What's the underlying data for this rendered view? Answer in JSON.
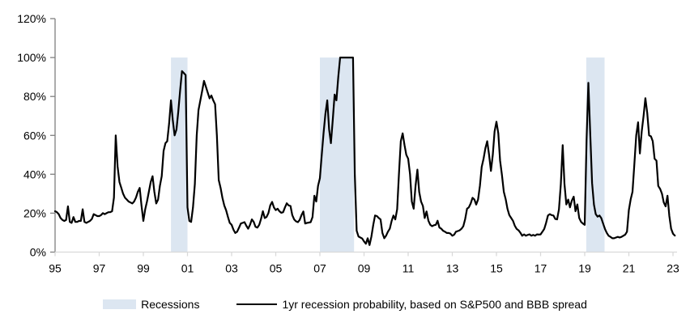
{
  "chart_data": {
    "type": "line",
    "title": "",
    "xlabel": "",
    "ylabel": "",
    "ylim": [
      0,
      120
    ],
    "y_tick_values": [
      0,
      20,
      40,
      60,
      80,
      100,
      120
    ],
    "y_ticks": [
      "0%",
      "20%",
      "40%",
      "60%",
      "80%",
      "100%",
      "120%"
    ],
    "x_tick_years": [
      1995,
      1997,
      1999,
      2001,
      2003,
      2005,
      2007,
      2009,
      2011,
      2013,
      2015,
      2017,
      2019,
      2021,
      2023
    ],
    "x_tick_labels": [
      "95",
      "97",
      "99",
      "01",
      "03",
      "05",
      "07",
      "09",
      "11",
      "13",
      "15",
      "17",
      "19",
      "21",
      "23"
    ],
    "x_start_year": 1995,
    "points_per_year": 12,
    "band_color": "#dce6f1",
    "line_color": "#000000",
    "axis_colors": {
      "y_axis": "#808080",
      "x_axis": "#d9d9d9",
      "tick_label": "#000000"
    },
    "recession_bands": [
      {
        "start": 2000.25,
        "end": 2001.0
      },
      {
        "start": 2007.0,
        "end": 2008.55
      },
      {
        "start": 2019.07,
        "end": 2019.9
      }
    ],
    "series": [
      {
        "name": "1yr recession probability, based on S&P500 and BBB spread",
        "color": "#000000",
        "values": [
          21,
          20.5,
          19.5,
          17.5,
          16.5,
          16,
          16.5,
          23.5,
          15.5,
          15,
          18,
          15.5,
          15.5,
          16,
          16,
          22,
          15.5,
          15,
          15.5,
          16,
          17,
          19.5,
          19,
          18.5,
          18.5,
          19,
          20,
          19.5,
          20,
          20.5,
          20.5,
          21,
          28,
          60,
          44,
          36,
          33,
          30,
          28,
          27,
          26,
          25.5,
          25,
          26,
          28,
          31,
          33,
          24,
          16,
          22,
          26,
          31,
          36,
          39,
          31,
          25,
          27,
          34,
          39,
          52,
          56,
          57,
          66,
          78,
          68,
          60,
          63,
          72,
          83,
          93,
          92,
          91,
          23,
          16,
          15.5,
          23,
          35,
          60,
          73,
          78,
          83,
          88,
          85,
          82,
          79,
          80.5,
          78,
          76,
          60,
          37,
          33,
          28,
          24,
          21.5,
          18,
          15,
          14,
          11.5,
          9.8,
          10.5,
          12.5,
          14.7,
          15,
          15.4,
          13.5,
          12,
          14,
          16.8,
          15.5,
          13,
          12.6,
          14,
          17,
          21,
          17.5,
          18,
          20,
          24,
          25.8,
          23,
          21.6,
          22.3,
          21,
          20.2,
          20.5,
          23,
          25.1,
          24,
          23.7,
          19,
          16.8,
          15.8,
          15.4,
          16.5,
          19,
          20.9,
          14.7,
          15,
          15.2,
          15.4,
          18,
          29,
          26,
          34,
          38,
          50,
          61,
          71,
          78,
          63,
          56,
          68,
          81,
          78,
          90,
          100,
          100,
          100,
          100,
          100,
          100,
          100,
          100,
          40,
          11,
          8,
          7.5,
          7,
          5.5,
          4.3,
          7.1,
          3.6,
          8,
          14,
          18.8,
          18.5,
          17.5,
          16.8,
          9.8,
          7.1,
          8.5,
          10.5,
          12,
          16,
          18.8,
          16.8,
          22,
          40,
          57,
          61,
          55,
          50,
          48,
          40,
          26,
          22.3,
          34,
          42.4,
          31,
          26,
          23.7,
          17.5,
          20.9,
          16.1,
          14,
          13.3,
          13.8,
          14,
          16.1,
          12.6,
          12,
          11,
          10.5,
          9.8,
          9.8,
          9.5,
          8.4,
          9,
          10.5,
          10.8,
          11.2,
          12,
          13.3,
          17,
          22.3,
          23,
          25,
          27.9,
          27,
          24.4,
          27,
          34.1,
          43.8,
          48,
          53.5,
          57,
          50,
          41.7,
          50,
          62,
          67,
          61,
          47,
          39.6,
          31,
          27.2,
          22.3,
          19,
          17.5,
          16.1,
          13.5,
          11.9,
          11.2,
          10,
          8.4,
          9.1,
          8.4,
          8.8,
          9.1,
          8.4,
          8.8,
          8.4,
          9.1,
          9,
          9.1,
          10.5,
          11.9,
          15,
          18.8,
          19.5,
          19,
          18.8,
          17,
          16.8,
          22,
          35,
          55,
          35,
          24.5,
          27,
          23,
          26.5,
          28.5,
          21,
          24.5,
          17.5,
          15.5,
          14.7,
          14,
          58,
          87,
          61,
          35.5,
          24.4,
          19.5,
          18.2,
          18.8,
          17.5,
          14.7,
          11.9,
          9.8,
          8.4,
          7.8,
          7.1,
          7.1,
          7.5,
          7.8,
          7.5,
          7.8,
          8.4,
          9,
          10.5,
          21.6,
          27.2,
          31,
          45.2,
          60,
          66.7,
          50.7,
          62,
          70.1,
          79.1,
          71.5,
          60,
          59.5,
          57,
          48,
          47,
          34,
          32.5,
          30,
          25.5,
          23.5,
          29,
          18.5,
          12,
          9.5,
          8.5
        ]
      }
    ],
    "legend": [
      {
        "label": "Recessions",
        "type": "band"
      },
      {
        "label": "1yr recession probability, based on S&P500 and BBB spread",
        "type": "line"
      }
    ]
  }
}
